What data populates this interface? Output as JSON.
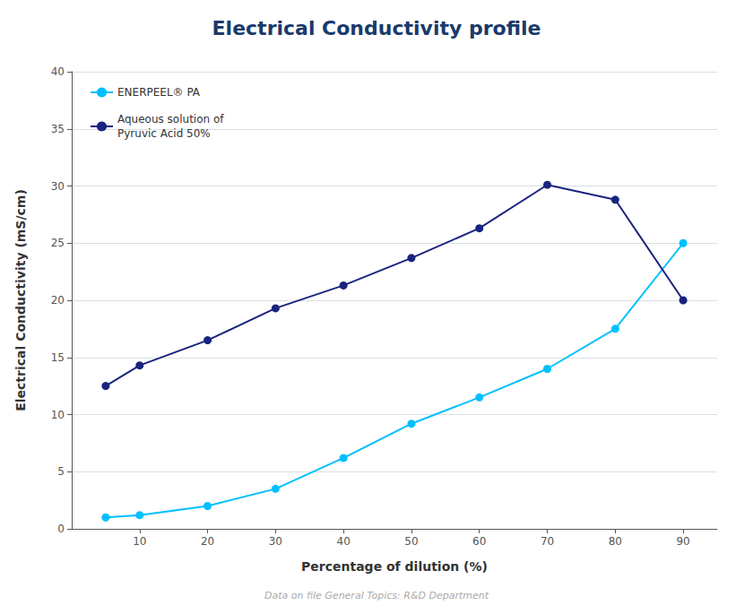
{
  "chart_data": {
    "type": "line",
    "title": "Electrical Conductivity profile",
    "x_label": "Percentage of dilution (%)",
    "y_label": "Electrical Conductivity (mS/cm)",
    "footnote": "Data on file General Topics: R&D Department",
    "x": [
      5,
      10,
      20,
      30,
      40,
      50,
      60,
      70,
      80,
      90
    ],
    "series": [
      {
        "name": "ENERPEEL® PA",
        "color": "#00BFFF",
        "marker": "circle",
        "line_style": "solid",
        "values": [
          1.0,
          1.2,
          2.0,
          3.5,
          6.2,
          9.2,
          11.5,
          14.0,
          17.5,
          25.0
        ]
      },
      {
        "name": "Aqueous solution of\nPyruvic Acid 50%",
        "color": "#1a237e",
        "marker": "circle",
        "line_style": "solid",
        "values": [
          12.5,
          14.3,
          16.5,
          19.3,
          21.3,
          23.7,
          26.3,
          30.1,
          28.8,
          20.0
        ]
      }
    ],
    "xlim": [
      0,
      95
    ],
    "xticks": [
      10,
      20,
      30,
      40,
      50,
      60,
      70,
      80,
      90
    ],
    "ylim": [
      0,
      40
    ],
    "yticks": [
      0,
      5,
      10,
      15,
      20,
      25,
      30,
      35,
      40
    ],
    "grid": true,
    "legend": "upper left"
  }
}
